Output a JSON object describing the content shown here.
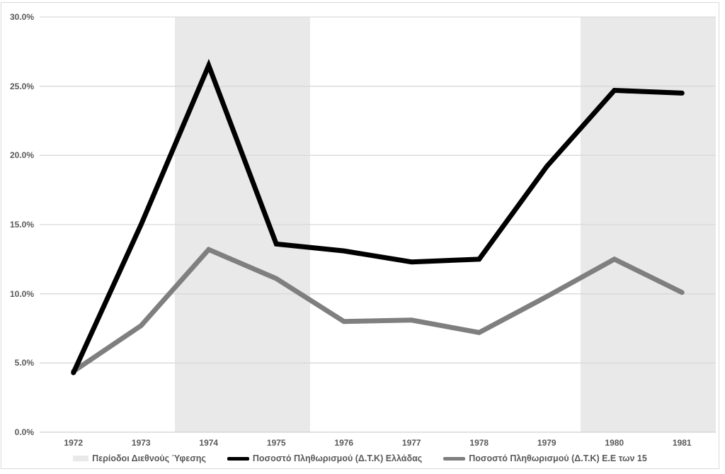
{
  "chart_data": {
    "type": "line",
    "title": "",
    "x_categories": [
      "1972",
      "1973",
      "1974",
      "1975",
      "1976",
      "1977",
      "1978",
      "1979",
      "1980",
      "1981"
    ],
    "y_ticks": [
      "0.0%",
      "5.0%",
      "10.0%",
      "15.0%",
      "20.0%",
      "25.0%",
      "30.0%"
    ],
    "y_tick_step": 5,
    "ylim": [
      0,
      30
    ],
    "grid": "horizontal",
    "legend_position": "bottom",
    "series": [
      {
        "name": "Ποσοστό Πληθωρισμού (Δ.Τ.Κ) Ελλάδας",
        "color": "#000000",
        "values": [
          4.3,
          15.0,
          26.5,
          13.6,
          13.1,
          12.3,
          12.5,
          19.2,
          24.7,
          24.5
        ]
      },
      {
        "name": "Ποσοστό Πληθωρισμού (Δ.Τ.Κ) Ε.Ε των 15",
        "color": "#7f7f7f",
        "values": [
          4.4,
          7.7,
          13.2,
          11.1,
          8.0,
          8.1,
          7.2,
          9.8,
          12.5,
          10.1
        ]
      }
    ],
    "recession_bands": {
      "name": "Περίοδοι Διεθνούς Ύφεσης",
      "color": "#e9e9e9",
      "ranges_years": [
        [
          1973.5,
          1975.5
        ],
        [
          1979.5,
          1981.5
        ]
      ],
      "first_year": 1972
    },
    "colors": {
      "gridline": "#d9d9d9",
      "axis_line": "#d0d0d0",
      "tick_text": "#595959",
      "background": "#ffffff"
    }
  }
}
